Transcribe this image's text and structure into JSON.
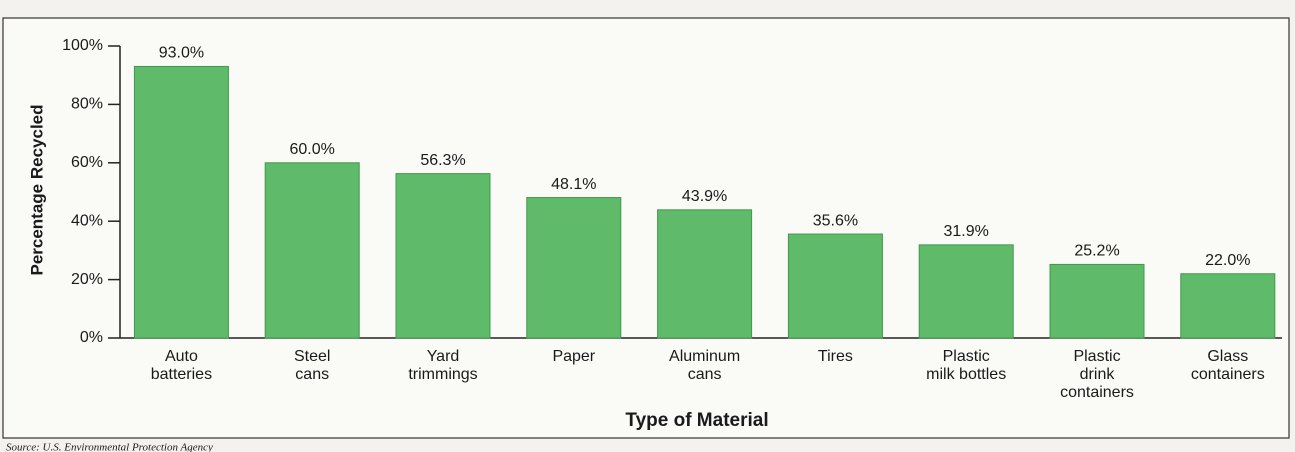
{
  "chart_data": {
    "type": "bar",
    "categories": [
      [
        "Auto",
        "batteries"
      ],
      [
        "Steel",
        "cans"
      ],
      [
        "Yard",
        "trimmings"
      ],
      [
        "Paper"
      ],
      [
        "Aluminum",
        "cans"
      ],
      [
        "Tires"
      ],
      [
        "Plastic",
        "milk bottles"
      ],
      [
        "Plastic",
        "drink",
        "containers"
      ],
      [
        "Glass",
        "containers"
      ]
    ],
    "values": [
      93.0,
      60.0,
      56.3,
      48.1,
      43.9,
      35.6,
      31.9,
      25.2,
      22.0
    ],
    "value_labels": [
      "93.0%",
      "60.0%",
      "56.3%",
      "48.1%",
      "43.9%",
      "35.6%",
      "31.9%",
      "25.2%",
      "22.0%"
    ],
    "color": "#5fba6a",
    "ylim": [
      0,
      100
    ],
    "yticks": [
      {
        "value": 0,
        "label": "0%"
      },
      {
        "value": 20,
        "label": "20%"
      },
      {
        "value": 40,
        "label": "40%"
      },
      {
        "value": 60,
        "label": "60%"
      },
      {
        "value": 80,
        "label": "80%"
      },
      {
        "value": 100,
        "label": "100%"
      }
    ],
    "y_label": "Percentage Recycled",
    "x_label": "Type of Material",
    "source": "Source: U.S. Environmental Protection Agency"
  }
}
